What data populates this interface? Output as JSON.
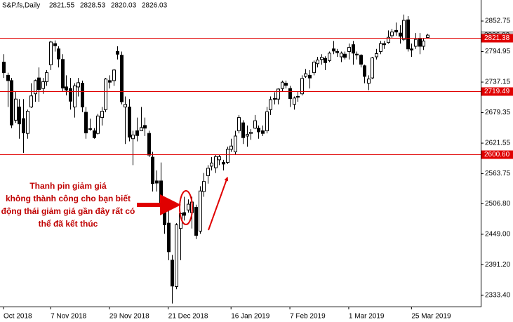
{
  "chart_data": {
    "type": "candlestick",
    "title": "S&P.fs,Daily",
    "ylim": [
      2312.15,
      2892.6
    ],
    "yticks": [
      2852.75,
      2794.95,
      2737.15,
      2679.35,
      2621.55,
      2563.75,
      {
        "value": 2506.8,
        "label": "2506.80"
      },
      {
        "value": 2449,
        "label": "2449.00"
      },
      {
        "value": 2391.2,
        "label": "2391.20"
      },
      {
        "value": 2333.4,
        "label": "2333.40"
      }
    ],
    "levels": [
      2821.38,
      2719.49,
      {
        "value": 2600.6,
        "label": "2600.60"
      }
    ],
    "level_color": "#e00000",
    "annotation": [
      "Thanh pin giảm giá",
      "không thành công cho bạn biết",
      "động thái giảm giá gần đây rất có",
      "thể đã kết thúc"
    ],
    "categories": [
      "Oct 2018",
      null,
      null,
      null,
      null,
      null,
      null,
      null,
      null,
      null,
      null,
      null,
      "7 Nov 2018",
      null,
      null,
      null,
      null,
      null,
      null,
      null,
      null,
      null,
      null,
      null,
      null,
      null,
      null,
      "29 Nov 2018",
      null,
      null,
      null,
      null,
      null,
      null,
      null,
      null,
      null,
      null,
      null,
      null,
      null,
      null,
      "21 Dec 2018",
      null,
      null,
      null,
      null,
      null,
      null,
      null,
      null,
      null,
      null,
      null,
      null,
      null,
      null,
      null,
      "16 Jan 2019",
      null,
      null,
      null,
      null,
      null,
      null,
      null,
      null,
      null,
      null,
      null,
      null,
      null,
      null,
      "7 Feb 2019",
      null,
      null,
      null,
      null,
      null,
      null,
      null,
      null,
      null,
      null,
      null,
      null,
      null,
      null,
      "1 Mar 2019",
      null,
      null,
      null,
      null,
      null,
      null,
      null,
      null,
      null,
      null,
      null,
      null,
      null,
      null,
      null,
      "25 Mar 2019",
      null,
      null,
      null,
      null
    ],
    "ohlc": [
      [
        2775,
        2790,
        2745,
        2755
      ],
      [
        2750,
        2755,
        2690,
        2740
      ],
      [
        2740,
        2745,
        2650,
        2656
      ],
      [
        2665,
        2720,
        2660,
        2705
      ],
      [
        2690,
        2705,
        2630,
        2658
      ],
      [
        2668,
        2705,
        2603,
        2641
      ],
      [
        2640,
        2685,
        2630,
        2682
      ],
      [
        2690,
        2735,
        2688,
        2711
      ],
      [
        2715,
        2742,
        2700,
        2740
      ],
      [
        2745,
        2765,
        2700,
        2723
      ],
      [
        2725,
        2745,
        2715,
        2738
      ],
      [
        2738,
        2760,
        2730,
        2755
      ],
      [
        2770,
        2815,
        2760,
        2813
      ],
      [
        2810,
        2816,
        2795,
        2806
      ],
      [
        2800,
        2805,
        2765,
        2781
      ],
      [
        2780,
        2790,
        2720,
        2726
      ],
      [
        2728,
        2750,
        2712,
        2722
      ],
      [
        2725,
        2745,
        2685,
        2701
      ],
      [
        2690,
        2735,
        2670,
        2730
      ],
      [
        2728,
        2745,
        2710,
        2736
      ],
      [
        2735,
        2740,
        2680,
        2690
      ],
      [
        2680,
        2690,
        2630,
        2641
      ],
      [
        2648,
        2668,
        2645,
        2649
      ],
      [
        2645,
        2650,
        2630,
        2632
      ],
      [
        2640,
        2677,
        2638,
        2673
      ],
      [
        2670,
        2690,
        2655,
        2682
      ],
      [
        2685,
        2745,
        2680,
        2743
      ],
      [
        2740,
        2750,
        2725,
        2737
      ],
      [
        2740,
        2762,
        2730,
        2760
      ],
      [
        2795,
        2805,
        2780,
        2790
      ],
      [
        2788,
        2795,
        2695,
        2700
      ],
      [
        2690,
        2710,
        2620,
        2695
      ],
      [
        2690,
        2705,
        2625,
        2633
      ],
      [
        2630,
        2645,
        2580,
        2637
      ],
      [
        2645,
        2670,
        2625,
        2636
      ],
      [
        2645,
        2690,
        2645,
        2651
      ],
      [
        2655,
        2670,
        2635,
        2650
      ],
      [
        2640,
        2645,
        2595,
        2599
      ],
      [
        2595,
        2605,
        2530,
        2545
      ],
      [
        2550,
        2570,
        2530,
        2546
      ],
      [
        2550,
        2585,
        2490,
        2506
      ],
      [
        2495,
        2510,
        2450,
        2467
      ],
      [
        2470,
        2510,
        2400,
        2416
      ],
      [
        2400,
        2410,
        2318,
        2351
      ],
      [
        2350,
        2470,
        2345,
        2467
      ],
      [
        2460,
        2490,
        2400,
        2488
      ],
      [
        2490,
        2520,
        2475,
        2485
      ],
      [
        2495,
        2515,
        2490,
        2506
      ],
      [
        2490,
        2520,
        2460,
        2510
      ],
      [
        2500,
        2505,
        2440,
        2447
      ],
      [
        2455,
        2540,
        2450,
        2531
      ],
      [
        2530,
        2565,
        2520,
        2549
      ],
      [
        2560,
        2580,
        2545,
        2574
      ],
      [
        2578,
        2595,
        2570,
        2584
      ],
      [
        2575,
        2600,
        2565,
        2596
      ],
      [
        2590,
        2600,
        2580,
        2596
      ],
      [
        2585,
        2590,
        2570,
        2582
      ],
      [
        2585,
        2615,
        2582,
        2610
      ],
      [
        2610,
        2630,
        2605,
        2616
      ],
      [
        2605,
        2645,
        2600,
        2635
      ],
      [
        2645,
        2675,
        2640,
        2670
      ],
      [
        2660,
        2665,
        2620,
        2632
      ],
      [
        2635,
        2655,
        2615,
        2638
      ],
      [
        2640,
        2648,
        2628,
        2642
      ],
      [
        2650,
        2675,
        2648,
        2664
      ],
      [
        2650,
        2655,
        2630,
        2643
      ],
      [
        2645,
        2655,
        2635,
        2640
      ],
      [
        2645,
        2690,
        2640,
        2681
      ],
      [
        2685,
        2710,
        2675,
        2704
      ],
      [
        2705,
        2718,
        2695,
        2706
      ],
      [
        2705,
        2725,
        2695,
        2724
      ],
      [
        2725,
        2740,
        2720,
        2737
      ],
      [
        2735,
        2740,
        2725,
        2731
      ],
      [
        2725,
        2730,
        2690,
        2706
      ],
      [
        2695,
        2710,
        2685,
        2707
      ],
      [
        2710,
        2720,
        2700,
        2709
      ],
      [
        2715,
        2750,
        2712,
        2744
      ],
      [
        2748,
        2762,
        2745,
        2753
      ],
      [
        2750,
        2760,
        2725,
        2745
      ],
      [
        2755,
        2778,
        2750,
        2775
      ],
      [
        2772,
        2785,
        2765,
        2779
      ],
      [
        2780,
        2790,
        2770,
        2784
      ],
      [
        2782,
        2786,
        2760,
        2774
      ],
      [
        2778,
        2795,
        2775,
        2792
      ],
      [
        2800,
        2815,
        2790,
        2796
      ],
      [
        2795,
        2800,
        2785,
        2793
      ],
      [
        2785,
        2795,
        2775,
        2792
      ],
      [
        2790,
        2795,
        2780,
        2784
      ],
      [
        2795,
        2810,
        2780,
        2803
      ],
      [
        2808,
        2815,
        2770,
        2792
      ],
      [
        2790,
        2795,
        2780,
        2789
      ],
      [
        2788,
        2790,
        2765,
        2771
      ],
      [
        2768,
        2770,
        2735,
        2748
      ],
      [
        2735,
        2750,
        2722,
        2743
      ],
      [
        2745,
        2785,
        2743,
        2783
      ],
      [
        2785,
        2800,
        2780,
        2791
      ],
      [
        2795,
        2815,
        2790,
        2810
      ],
      [
        2810,
        2815,
        2800,
        2808
      ],
      [
        2812,
        2835,
        2810,
        2822
      ],
      [
        2825,
        2838,
        2820,
        2832
      ],
      [
        2835,
        2850,
        2825,
        2832
      ],
      [
        2830,
        2845,
        2810,
        2824
      ],
      [
        2818,
        2865,
        2815,
        2854
      ],
      [
        2855,
        2862,
        2795,
        2800
      ],
      [
        2800,
        2810,
        2785,
        2798
      ],
      [
        2805,
        2830,
        2800,
        2818
      ],
      [
        2820,
        2830,
        2790,
        2805
      ],
      [
        2805,
        2820,
        2798,
        2815
      ],
      [
        2821.55,
        2828.53,
        2820.03,
        2826.03
      ]
    ]
  }
}
